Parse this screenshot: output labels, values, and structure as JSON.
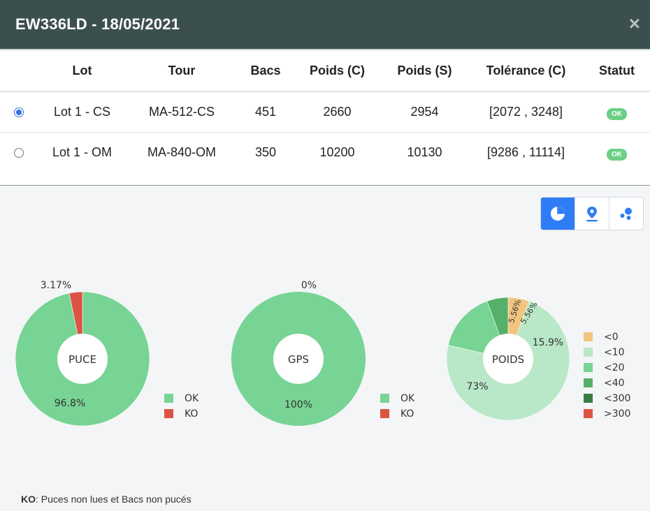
{
  "modal": {
    "title": "EW336LD - 18/05/2021",
    "close_label": "×"
  },
  "table": {
    "headers": [
      "",
      "Lot",
      "Tour",
      "Bacs",
      "Poids (C)",
      "Poids (S)",
      "Tolérance (C)",
      "Statut"
    ],
    "rows": [
      {
        "selected": true,
        "lot": "Lot 1 - CS",
        "tour": "MA-512-CS",
        "bacs": "451",
        "poids_c": "2660",
        "poids_s": "2954",
        "tolerance": "[2072 , 3248]",
        "statut": "OK"
      },
      {
        "selected": false,
        "lot": "Lot 1 - OM",
        "tour": "MA-840-OM",
        "bacs": "350",
        "poids_c": "10200",
        "poids_s": "10130",
        "tolerance": "[9286 , 11114]",
        "statut": "OK"
      }
    ]
  },
  "view_toggles": [
    {
      "icon": "pie-chart-icon",
      "active": true
    },
    {
      "icon": "map-marker-icon",
      "active": false
    },
    {
      "icon": "bubbles-icon",
      "active": false
    }
  ],
  "colors": {
    "ok": "#77d494",
    "ko": "#dc5443",
    "lt0": "#f1c57f",
    "lt10": "#b9e8c8",
    "lt20": "#77d494",
    "lt40": "#55b06a",
    "lt300": "#3a7d44",
    "gt300": "#dc5443"
  },
  "chart_data": [
    {
      "type": "pie",
      "title": "PUCE",
      "categories": [
        "OK",
        "KO"
      ],
      "values": [
        96.8,
        3.17
      ],
      "labels": [
        "96.8%",
        "3.17%"
      ],
      "legend": [
        "OK",
        "KO"
      ]
    },
    {
      "type": "pie",
      "title": "GPS",
      "categories": [
        "OK",
        "KO"
      ],
      "values": [
        100,
        0
      ],
      "labels": [
        "100%",
        "0%"
      ],
      "legend": [
        "OK",
        "KO"
      ]
    },
    {
      "type": "pie",
      "title": "POIDS",
      "categories": [
        "<0",
        "<10",
        "<20",
        "<40",
        "<300",
        ">300"
      ],
      "values": [
        5.56,
        73,
        15.9,
        5.56,
        0,
        0
      ],
      "labels": [
        "5.56%",
        "73%",
        "15.9%",
        "5.56%",
        "",
        ""
      ],
      "legend": [
        "<0",
        "<10",
        "<20",
        "<40",
        "<300",
        ">300"
      ]
    }
  ],
  "footnote": {
    "bold": "KO",
    "text": ": Puces non lues et Bacs non pucés"
  }
}
